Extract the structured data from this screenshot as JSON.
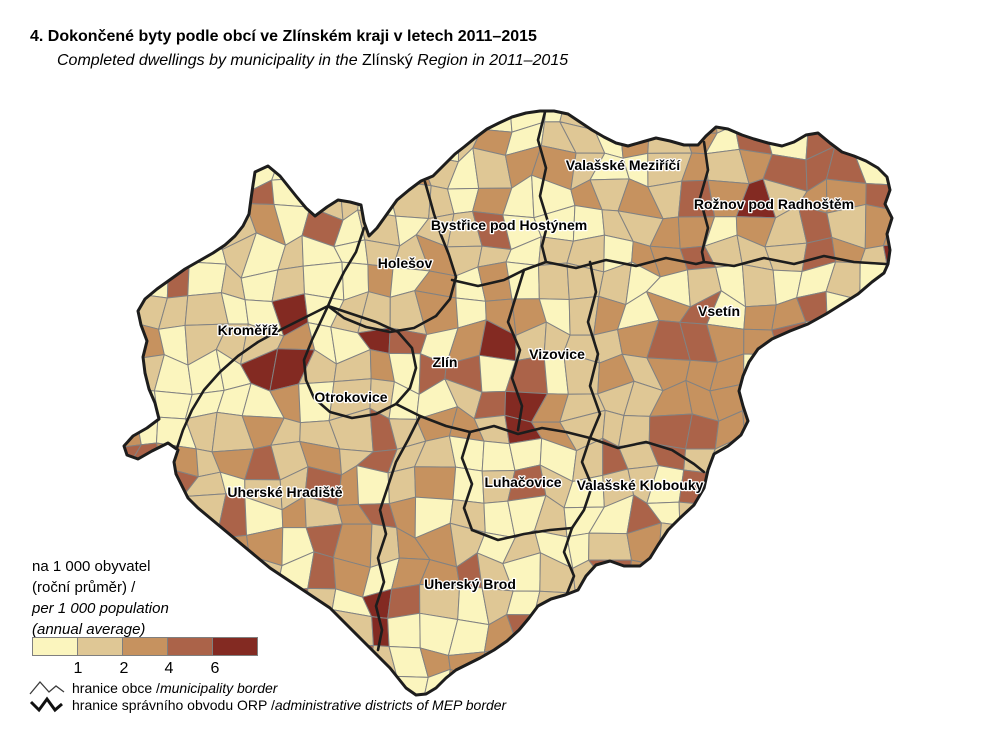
{
  "title": {
    "czech": "4. Dokončené byty podle obcí ve Zlínském kraji v letech 2011–2015",
    "english_pre": "Completed dwellings by municipality in the ",
    "english_name": "Zlínský",
    "english_post": " Region in 2011–2015"
  },
  "legend": {
    "unit_cz_line1": "na 1 000 obyvatel",
    "unit_cz_line2": "(roční průměr) /",
    "unit_en_line1": "per 1 000 population",
    "unit_en_line2": "(annual average)",
    "class_breaks": [
      "1",
      "2",
      "4",
      "6"
    ],
    "palette": [
      "#FBF5BE",
      "#DFC795",
      "#C6925F",
      "#AB6349",
      "#832A22"
    ],
    "borders": [
      {
        "cz": "hranice obce / ",
        "en": "municipality border"
      },
      {
        "cz": "hranice správního obvodu ORP / ",
        "en": "administrative districts of MEP border"
      }
    ]
  },
  "map": {
    "border_colors": {
      "municipality": "#828282",
      "district": "#1D1D1D"
    },
    "labels": [
      {
        "text": "Valašské Meziříčí"
      },
      {
        "text": "Rožnov pod Radhoštěm"
      },
      {
        "text": "Bystřice pod Hostýnem"
      },
      {
        "text": "Holešov"
      },
      {
        "text": "Kroměříž"
      },
      {
        "text": "Vsetín"
      },
      {
        "text": "Zlín"
      },
      {
        "text": "Vizovice"
      },
      {
        "text": "Otrokovice"
      },
      {
        "text": "Uherské Hradiště"
      },
      {
        "text": "Luhačovice"
      },
      {
        "text": "Valašské Klobouky"
      },
      {
        "text": "Uherský Brod"
      }
    ]
  },
  "chart_data": {
    "type": "choropleth",
    "title": "4. Dokončené byty podle obcí ve Zlínském kraji v letech 2011–2015",
    "metric": "na 1 000 obyvatel (roční průměr) / per 1 000 population (annual average)",
    "legend_breaks": [
      1,
      2,
      4,
      6
    ],
    "legend_colors": [
      "#FBF5BE",
      "#DFC795",
      "#C6925F",
      "#AB6349",
      "#832A22"
    ],
    "district_labels": [
      "Valašské Meziříčí",
      "Rožnov pod Radhoštěm",
      "Bystřice pod Hostýnem",
      "Holešov",
      "Kroměříž",
      "Vsetín",
      "Zlín",
      "Vizovice",
      "Otrokovice",
      "Uherské Hradiště",
      "Luhačovice",
      "Valašské Klobouky",
      "Uherský Brod"
    ]
  }
}
